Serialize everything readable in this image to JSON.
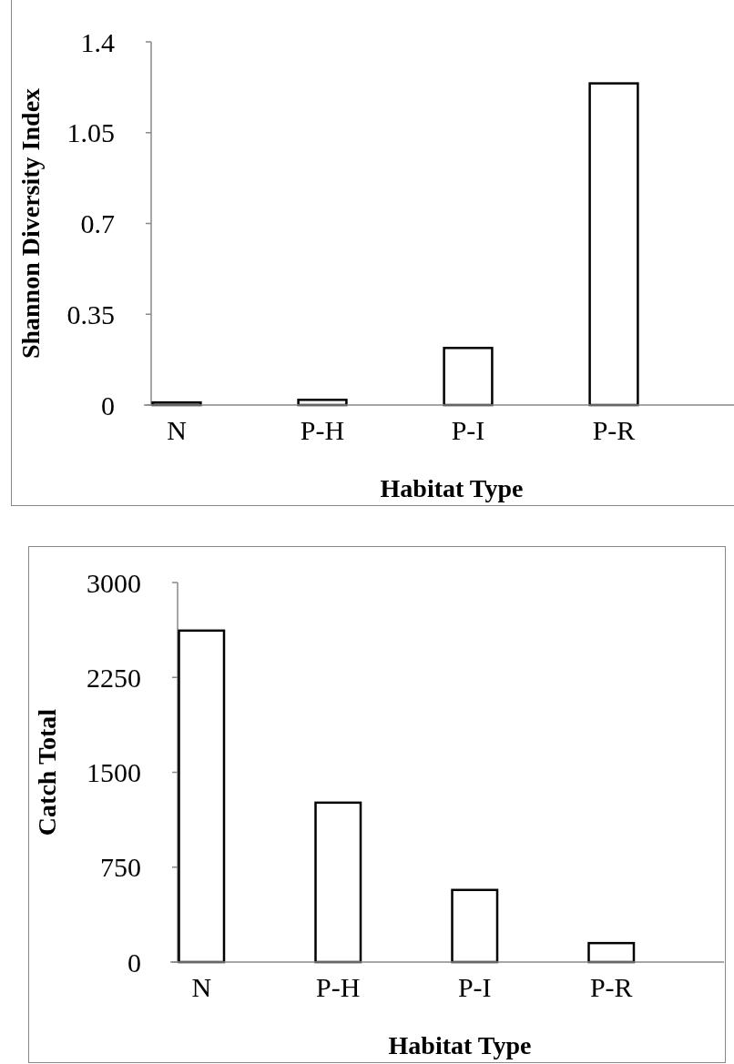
{
  "chart_data": [
    {
      "type": "bar",
      "xlabel": "Habitat Type",
      "ylabel": "Shannon Diversity Index",
      "categories": [
        "N",
        "P-H",
        "P-I",
        "P-R"
      ],
      "values": [
        0.01,
        0.02,
        0.22,
        1.24
      ],
      "color": "#ffffff",
      "ylim": [
        0,
        1.4
      ],
      "yticks": [
        0,
        0.35,
        0.7,
        1.05,
        1.4
      ],
      "grid": false
    },
    {
      "type": "bar",
      "xlabel": "Habitat Type",
      "ylabel": "Catch Total",
      "categories": [
        "N",
        "P-H",
        "P-I",
        "P-R"
      ],
      "values": [
        2620,
        1260,
        570,
        150
      ],
      "color": "#ffffff",
      "ylim": [
        0,
        3000
      ],
      "yticks": [
        0,
        750,
        1500,
        2250,
        3000
      ],
      "grid": false
    }
  ]
}
